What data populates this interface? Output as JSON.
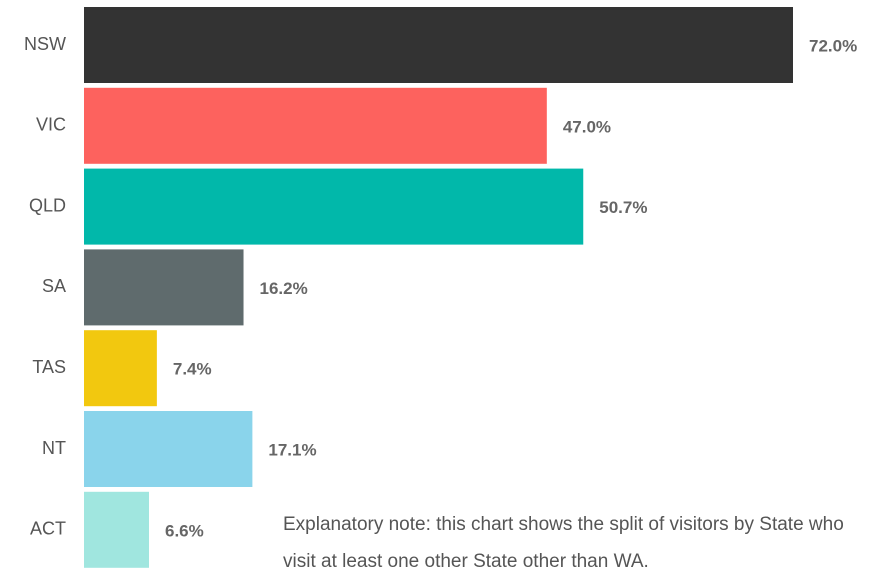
{
  "chart_data": {
    "type": "bar",
    "orientation": "horizontal",
    "categories": [
      "NSW",
      "VIC",
      "QLD",
      "SA",
      "TAS",
      "NT",
      "ACT"
    ],
    "values": [
      72.0,
      47.0,
      50.7,
      16.2,
      7.4,
      17.1,
      6.6
    ],
    "value_labels": [
      "72.0%",
      "47.0%",
      "50.7%",
      "16.2%",
      "7.4%",
      "17.1%",
      "6.6%"
    ],
    "colors": [
      "#333333",
      "#fd625e",
      "#01b8aa",
      "#5f6b6d",
      "#f2c80f",
      "#8ad4eb",
      "#a0e6df"
    ],
    "annotation": "Explanatory note: this chart shows the split of visitors by State who visit at least one other State other than WA."
  }
}
